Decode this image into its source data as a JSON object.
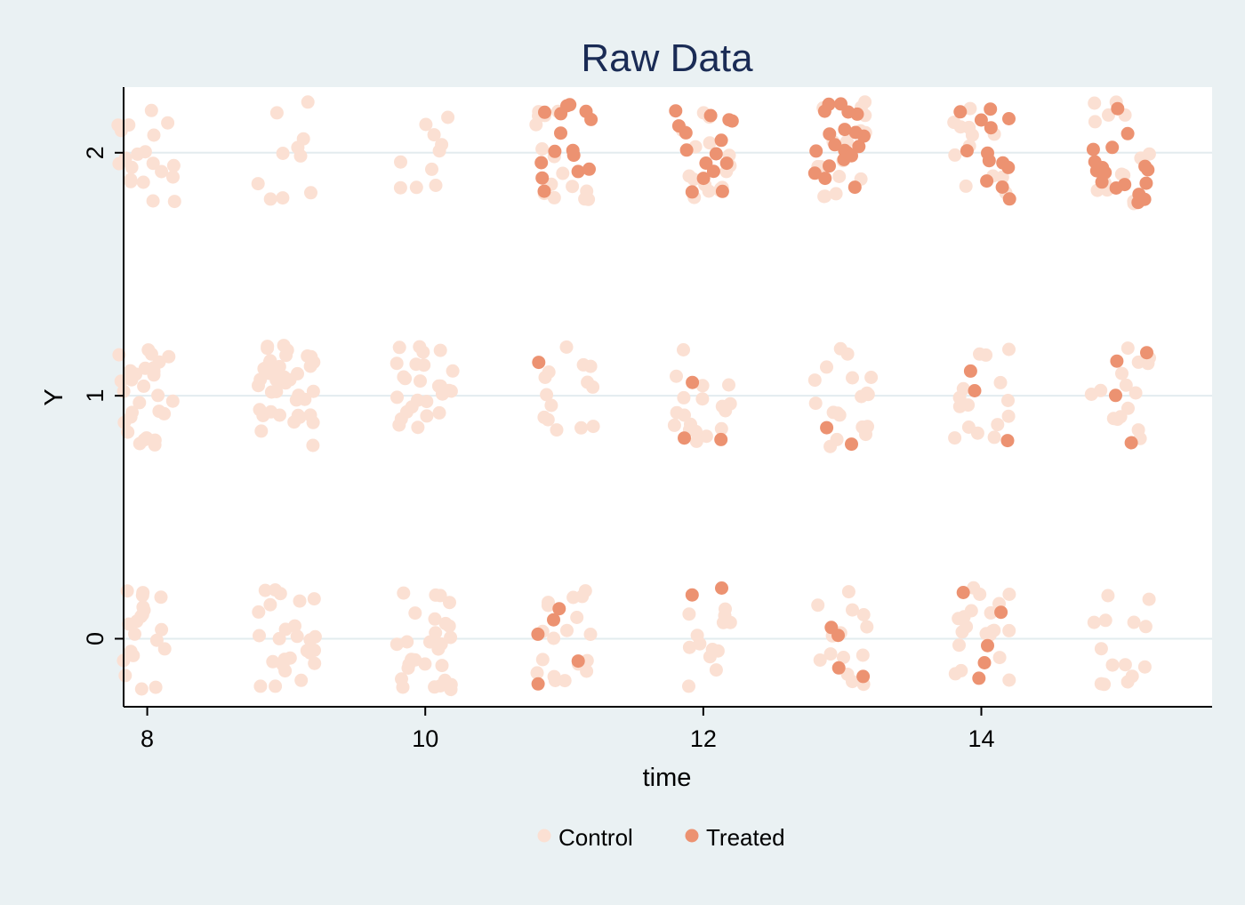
{
  "chart_data": {
    "type": "scatter",
    "title": "Raw Data",
    "xlabel": "time",
    "ylabel": "Y",
    "xlim": [
      7.83,
      15.66
    ],
    "ylim": [
      -0.28,
      2.27
    ],
    "xticks": [
      8,
      10,
      12,
      14
    ],
    "yticks": [
      0,
      1,
      2
    ],
    "grid": true,
    "jitter": true,
    "legend_position": "bottom-center",
    "colors": {
      "background": "#eaf1f3",
      "plot_area": "#ffffff",
      "gridline": "#e3ecef",
      "title": "#1a2b55",
      "control": "#fbe0d3",
      "treated": "#ec9271"
    },
    "series": [
      {
        "name": "Control",
        "color": "#fbe0d3",
        "points": [
          {
            "time": 8,
            "y": 2,
            "count": 20
          },
          {
            "time": 8,
            "y": 1,
            "count": 31
          },
          {
            "time": 8,
            "y": 0,
            "count": 20
          },
          {
            "time": 9,
            "y": 2,
            "count": 10
          },
          {
            "time": 9,
            "y": 1,
            "count": 40
          },
          {
            "time": 9,
            "y": 0,
            "count": 26
          },
          {
            "time": 10,
            "y": 2,
            "count": 10
          },
          {
            "time": 10,
            "y": 1,
            "count": 27
          },
          {
            "time": 10,
            "y": 0,
            "count": 28
          },
          {
            "time": 11,
            "y": 2,
            "count": 15
          },
          {
            "time": 11,
            "y": 1,
            "count": 14
          },
          {
            "time": 11,
            "y": 0,
            "count": 18
          },
          {
            "time": 12,
            "y": 2,
            "count": 16
          },
          {
            "time": 12,
            "y": 1,
            "count": 18
          },
          {
            "time": 12,
            "y": 0,
            "count": 13
          },
          {
            "time": 13,
            "y": 2,
            "count": 17
          },
          {
            "time": 13,
            "y": 1,
            "count": 18
          },
          {
            "time": 13,
            "y": 0,
            "count": 14
          },
          {
            "time": 14,
            "y": 2,
            "count": 12
          },
          {
            "time": 14,
            "y": 1,
            "count": 15
          },
          {
            "time": 14,
            "y": 0,
            "count": 20
          },
          {
            "time": 15,
            "y": 2,
            "count": 14
          },
          {
            "time": 15,
            "y": 1,
            "count": 15
          },
          {
            "time": 15,
            "y": 0,
            "count": 14
          }
        ]
      },
      {
        "name": "Treated",
        "color": "#ec9271",
        "points": [
          {
            "time": 11,
            "y": 2,
            "count": 15
          },
          {
            "time": 11,
            "y": 1,
            "count": 1
          },
          {
            "time": 11,
            "y": 0,
            "count": 5
          },
          {
            "time": 12,
            "y": 2,
            "count": 15
          },
          {
            "time": 12,
            "y": 1,
            "count": 3
          },
          {
            "time": 12,
            "y": 0,
            "count": 2
          },
          {
            "time": 13,
            "y": 2,
            "count": 20
          },
          {
            "time": 13,
            "y": 1,
            "count": 2
          },
          {
            "time": 13,
            "y": 0,
            "count": 4
          },
          {
            "time": 14,
            "y": 2,
            "count": 13
          },
          {
            "time": 14,
            "y": 1,
            "count": 3
          },
          {
            "time": 14,
            "y": 0,
            "count": 5
          },
          {
            "time": 15,
            "y": 2,
            "count": 17
          },
          {
            "time": 15,
            "y": 1,
            "count": 4
          },
          {
            "time": 15,
            "y": 0,
            "count": 0
          }
        ]
      }
    ]
  }
}
